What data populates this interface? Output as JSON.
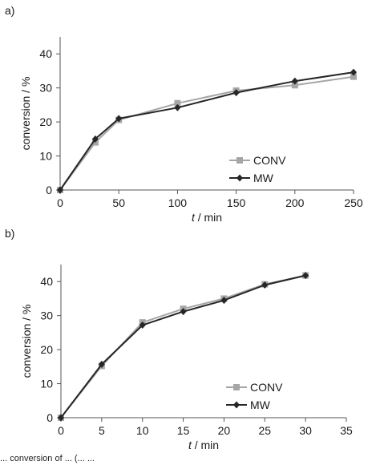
{
  "chart_data": [
    {
      "panel_label": "a)",
      "type": "line",
      "xlabel_italic": "t",
      "xlabel_rest": " / min",
      "ylabel": "conversion / %",
      "xlim": [
        0,
        250
      ],
      "ylim": [
        0,
        45
      ],
      "xticks": [
        0,
        50,
        100,
        150,
        200,
        250
      ],
      "yticks": [
        0,
        10,
        20,
        30,
        40
      ],
      "grid": false,
      "legend_position": "bottom-right",
      "series": [
        {
          "name": "CONV",
          "color": "#a6a6a6",
          "marker": "square",
          "x": [
            0,
            30,
            50,
            100,
            150,
            200,
            250
          ],
          "y": [
            0,
            14,
            20.6,
            25.5,
            29.2,
            30.8,
            33.3
          ]
        },
        {
          "name": "MW",
          "color": "#262626",
          "marker": "diamond",
          "x": [
            0,
            30,
            50,
            100,
            150,
            200,
            250
          ],
          "y": [
            0,
            15,
            21,
            24.2,
            28.6,
            32,
            34.6
          ]
        }
      ]
    },
    {
      "panel_label": "b)",
      "type": "line",
      "xlabel_italic": "t",
      "xlabel_rest": " / min",
      "ylabel": "conversion / %",
      "xlim": [
        0,
        35
      ],
      "ylim": [
        0,
        45
      ],
      "xticks": [
        0,
        5,
        10,
        15,
        20,
        25,
        30,
        35
      ],
      "yticks": [
        0,
        10,
        20,
        30,
        40
      ],
      "grid": false,
      "legend_position": "bottom-right",
      "series": [
        {
          "name": "CONV",
          "color": "#a6a6a6",
          "marker": "square",
          "x": [
            0,
            5,
            10,
            15,
            20,
            25,
            30
          ],
          "y": [
            0,
            15.2,
            28,
            32,
            35,
            39.2,
            41.8
          ]
        },
        {
          "name": "MW",
          "color": "#262626",
          "marker": "diamond",
          "x": [
            0,
            5,
            10,
            15,
            20,
            25,
            30
          ],
          "y": [
            0,
            15.7,
            27.2,
            31.2,
            34.5,
            39,
            41.8
          ]
        }
      ]
    }
  ],
  "caption_fragment": "... conversion of ... (... ..."
}
